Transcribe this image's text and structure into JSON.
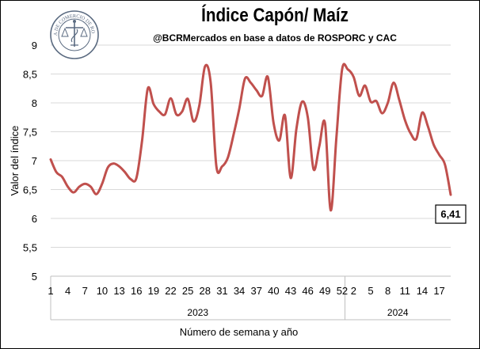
{
  "header": {
    "title": "Índice Capón/ Maíz",
    "subtitle": "@BCRMercados  en base a datos de ROSPORC y CAC",
    "seal_text": "BOLSA DE COMERCIO DE ROSARIO"
  },
  "colors": {
    "line": "#c0504d",
    "grid": "#d9d9d9",
    "axis": "#bfbfbf",
    "seal": "#5a6a80"
  },
  "chart_data": {
    "type": "line",
    "title": "Índice Capón/ Maíz",
    "subtitle": "@BCRMercados  en base a datos de ROSPORC y CAC",
    "xlabel": "Número de semana y año",
    "ylabel": "Valor del índice",
    "ylim": [
      5,
      9
    ],
    "y_ticks": [
      "5",
      "5,5",
      "6",
      "6,5",
      "7",
      "7,5",
      "8",
      "8,5",
      "9"
    ],
    "y_tick_values": [
      5,
      5.5,
      6,
      6.5,
      7,
      7.5,
      8,
      8.5,
      9
    ],
    "grid": true,
    "x_tick_labels": [
      {
        "week": 1,
        "label": "1"
      },
      {
        "week": 4,
        "label": "4"
      },
      {
        "week": 7,
        "label": "7"
      },
      {
        "week": 10,
        "label": "10"
      },
      {
        "week": 13,
        "label": "13"
      },
      {
        "week": 16,
        "label": "16"
      },
      {
        "week": 19,
        "label": "19"
      },
      {
        "week": 22,
        "label": "22"
      },
      {
        "week": 25,
        "label": "25"
      },
      {
        "week": 28,
        "label": "28"
      },
      {
        "week": 31,
        "label": "31"
      },
      {
        "week": 34,
        "label": "34"
      },
      {
        "week": 37,
        "label": "37"
      },
      {
        "week": 40,
        "label": "40"
      },
      {
        "week": 43,
        "label": "43"
      },
      {
        "week": 46,
        "label": "46"
      },
      {
        "week": 49,
        "label": "49"
      },
      {
        "week": 52,
        "label": "52"
      },
      {
        "week": 54,
        "label": "2"
      },
      {
        "week": 57,
        "label": "5"
      },
      {
        "week": 60,
        "label": "8"
      },
      {
        "week": 63,
        "label": "11"
      },
      {
        "week": 66,
        "label": "14"
      },
      {
        "week": 69,
        "label": "17"
      }
    ],
    "year_groups": [
      {
        "label": "2023",
        "from_week": 1,
        "to_week": 52
      },
      {
        "label": "2024",
        "from_week": 53,
        "to_week": 71
      }
    ],
    "series": [
      {
        "x": [
          1,
          2,
          3,
          4,
          5,
          6,
          7,
          8,
          9,
          10,
          11,
          12,
          13,
          14,
          15,
          16,
          17,
          18,
          19,
          20,
          21,
          22,
          23,
          24,
          25,
          26,
          27,
          28,
          29,
          30,
          31,
          32,
          33,
          34,
          35,
          36,
          37,
          38,
          39,
          40,
          41,
          42,
          43,
          44,
          45,
          46,
          47,
          48,
          49,
          50,
          51,
          52,
          53,
          54,
          55,
          56,
          57,
          58,
          59,
          60,
          61,
          62,
          63,
          64,
          65,
          66,
          67,
          68,
          69,
          70,
          71
        ],
        "values": [
          7.02,
          6.8,
          6.72,
          6.55,
          6.45,
          6.55,
          6.6,
          6.55,
          6.42,
          6.6,
          6.88,
          6.95,
          6.9,
          6.8,
          6.68,
          6.7,
          7.35,
          8.25,
          7.98,
          7.85,
          7.8,
          8.08,
          7.8,
          7.85,
          8.07,
          7.68,
          7.95,
          8.63,
          8.35,
          6.9,
          6.9,
          7.05,
          7.45,
          7.9,
          8.42,
          8.35,
          8.22,
          8.12,
          8.45,
          7.65,
          7.35,
          7.78,
          6.7,
          7.55,
          8.02,
          7.75,
          6.85,
          7.25,
          7.65,
          6.14,
          7.4,
          8.58,
          8.58,
          8.45,
          8.12,
          8.3,
          8.02,
          8.03,
          7.82,
          8.0,
          8.35,
          8.05,
          7.7,
          7.47,
          7.38,
          7.83,
          7.6,
          7.28,
          7.1,
          6.93,
          6.41
        ]
      }
    ],
    "last_value_label": "6,41"
  }
}
